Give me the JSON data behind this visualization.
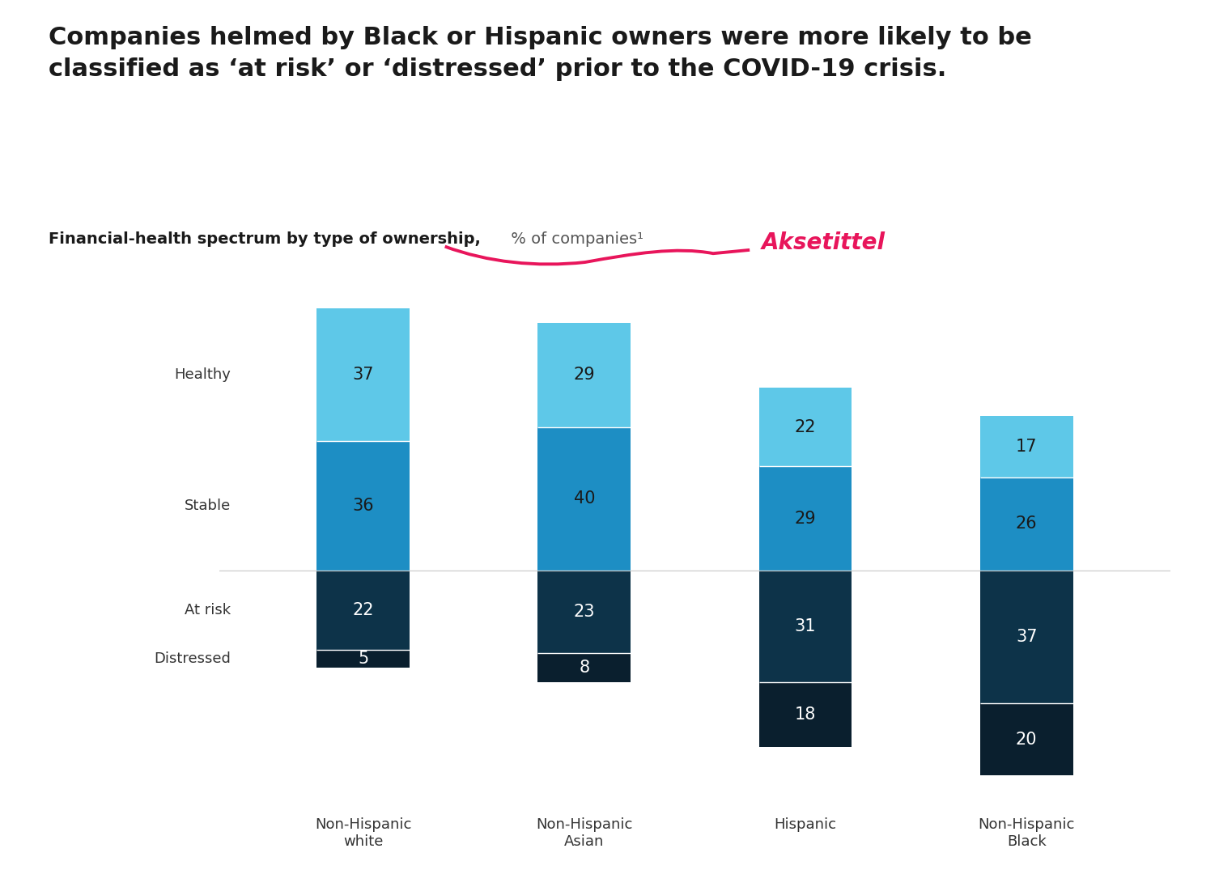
{
  "title": "Companies helmed by Black or Hispanic owners were more likely to be\nclassified as ‘at risk’ or ‘distressed’ prior to the COVID-19 crisis.",
  "subtitle_bold": "Financial-health spectrum by type of ownership,",
  "subtitle_normal": " % of companies¹",
  "axis_annotation": "Aksetittel",
  "categories": [
    "Non-Hispanic\nwhite",
    "Non-Hispanic\nAsian",
    "Hispanic",
    "Non-Hispanic\nBlack"
  ],
  "segments": {
    "distressed": [
      5,
      8,
      18,
      20
    ],
    "at_risk": [
      22,
      23,
      31,
      37
    ],
    "stable": [
      36,
      40,
      29,
      26
    ],
    "healthy": [
      37,
      29,
      22,
      17
    ]
  },
  "colors": {
    "distressed": "#0a1f2e",
    "at_risk": "#0d3349",
    "stable": "#1d8ec4",
    "healthy": "#5ec8e8"
  },
  "y_labels": {
    "healthy": "Healthy",
    "stable": "Stable",
    "at_risk": "At risk",
    "distressed": "Distressed"
  },
  "background_color": "#ffffff",
  "bar_width": 0.42,
  "annotation_color": "#e8155b",
  "title_fontsize": 22,
  "subtitle_fontsize": 14,
  "annotation_fontsize": 20,
  "y_label_fontsize": 13,
  "bar_label_fontsize": 15
}
